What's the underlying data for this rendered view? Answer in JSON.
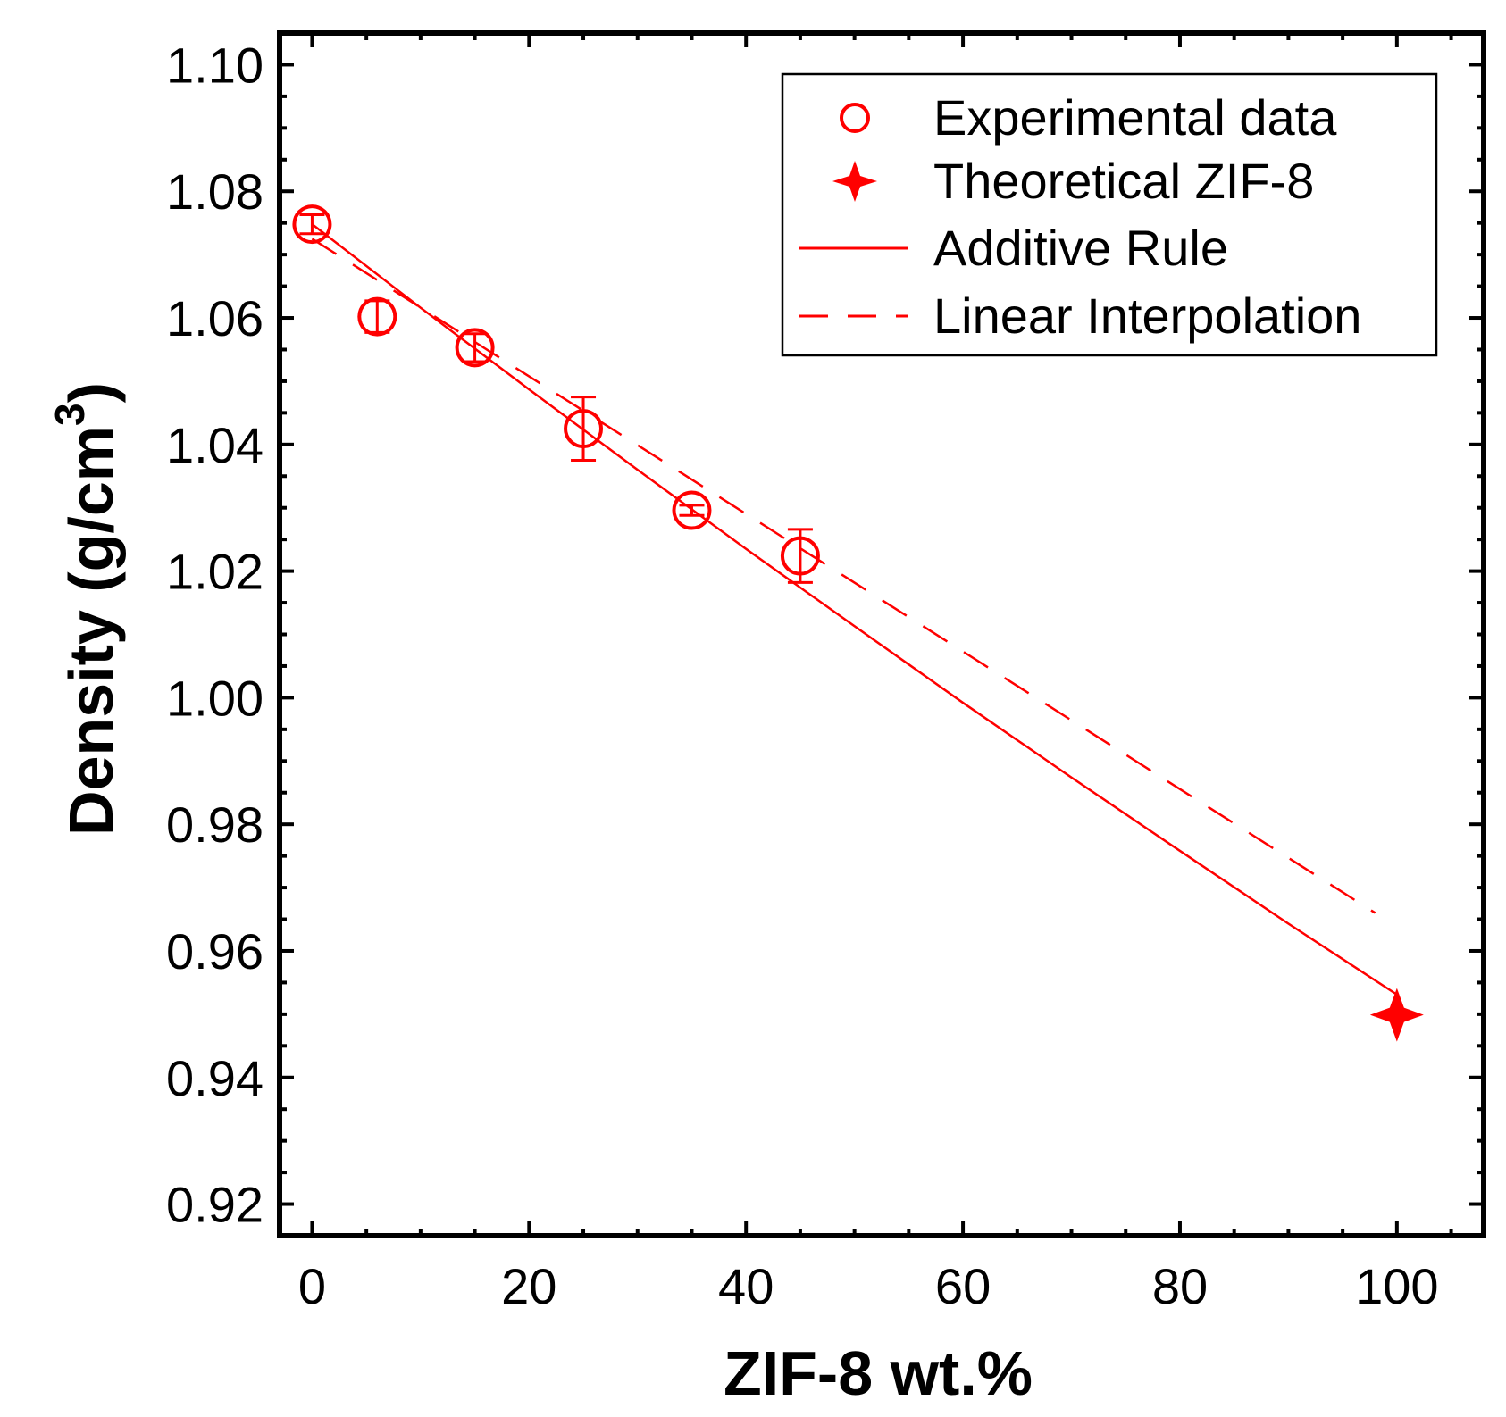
{
  "chart_data": {
    "type": "scatter",
    "xlabel": "ZIF-8 wt.%",
    "ylabel": "Density (g/cm",
    "ylabel_superscript": "3",
    "ylabel_close": ")",
    "xlim": [
      -3,
      108
    ],
    "ylim": [
      0.915,
      1.105
    ],
    "xticks": [
      0,
      20,
      40,
      60,
      80,
      100
    ],
    "xtick_labels": [
      "0",
      "20",
      "40",
      "60",
      "80",
      "100"
    ],
    "yticks": [
      0.92,
      0.94,
      0.96,
      0.98,
      1.0,
      1.02,
      1.04,
      1.06,
      1.08,
      1.1
    ],
    "ytick_labels": [
      "0.92",
      "0.94",
      "0.96",
      "0.98",
      "1.00",
      "1.02",
      "1.04",
      "1.06",
      "1.08",
      "1.10"
    ],
    "x_minor_step": 5,
    "y_minor_step": 0.005,
    "color": "#ff0000",
    "legend_position": "top-right",
    "legend": [
      {
        "label": "Experimental data",
        "marker": "open-circle"
      },
      {
        "label": "Theoretical ZIF-8",
        "marker": "filled-star"
      },
      {
        "label": "Additive Rule",
        "marker": "solid-line"
      },
      {
        "label": "Linear Interpolation",
        "marker": "dashed-line"
      }
    ],
    "series": [
      {
        "name": "Experimental data",
        "x": [
          0,
          6,
          15,
          25,
          35,
          45
        ],
        "y": [
          1.0748,
          1.0602,
          1.0553,
          1.0425,
          1.0296,
          1.0224
        ],
        "err": [
          0.0015,
          0.0025,
          0.0022,
          0.005,
          0.0008,
          0.0042
        ]
      },
      {
        "name": "Theoretical ZIF-8",
        "x": [
          100
        ],
        "y": [
          0.9499
        ]
      },
      {
        "name": "Additive Rule",
        "x": [
          0,
          10,
          20,
          30,
          40,
          50,
          60,
          70,
          80,
          90,
          100
        ],
        "y": [
          1.0748,
          1.0616,
          1.0487,
          1.036,
          1.0235,
          1.0113,
          0.9992,
          0.9874,
          0.9758,
          0.9643,
          0.9531
        ]
      },
      {
        "name": "Linear Interpolation",
        "x": [
          0,
          98
        ],
        "y": [
          1.0725,
          0.966
        ]
      }
    ]
  }
}
